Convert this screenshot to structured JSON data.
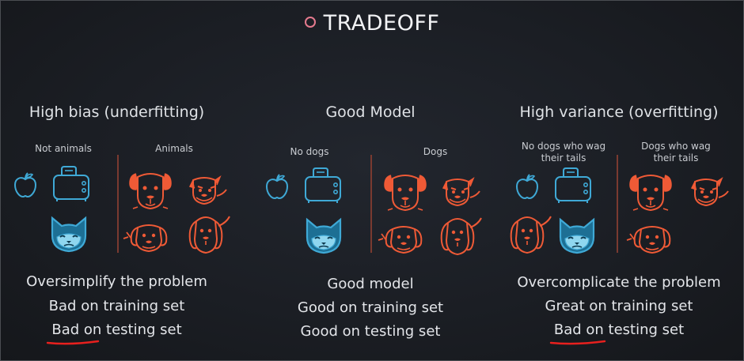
{
  "title": "TRADEOFF",
  "columns": [
    {
      "heading": "High bias (underfitting)",
      "left_label": "Not animals",
      "right_label": "Animals",
      "lines": [
        "Oversimplify the problem",
        "Bad on training set",
        "Bad on testing set"
      ]
    },
    {
      "heading": "Good Model",
      "left_label": "No dogs",
      "right_label": "Dogs",
      "lines": [
        "Good model",
        "Good on training set",
        "Good on testing set"
      ]
    },
    {
      "heading": "High variance (overfitting)",
      "left_label": "No dogs who wag their tails",
      "right_label": "Dogs who wag their tails",
      "lines": [
        "Overcomplicate the problem",
        "Great on training set",
        "Bad on testing set"
      ]
    }
  ],
  "colors": {
    "blue": "#3fa9d6",
    "orange": "#ef5a36",
    "accent_dot": "#e57a8e",
    "underline": "#e8201e"
  },
  "icons": [
    "apple-icon",
    "toaster-icon",
    "cat-icon",
    "dog-icon"
  ]
}
